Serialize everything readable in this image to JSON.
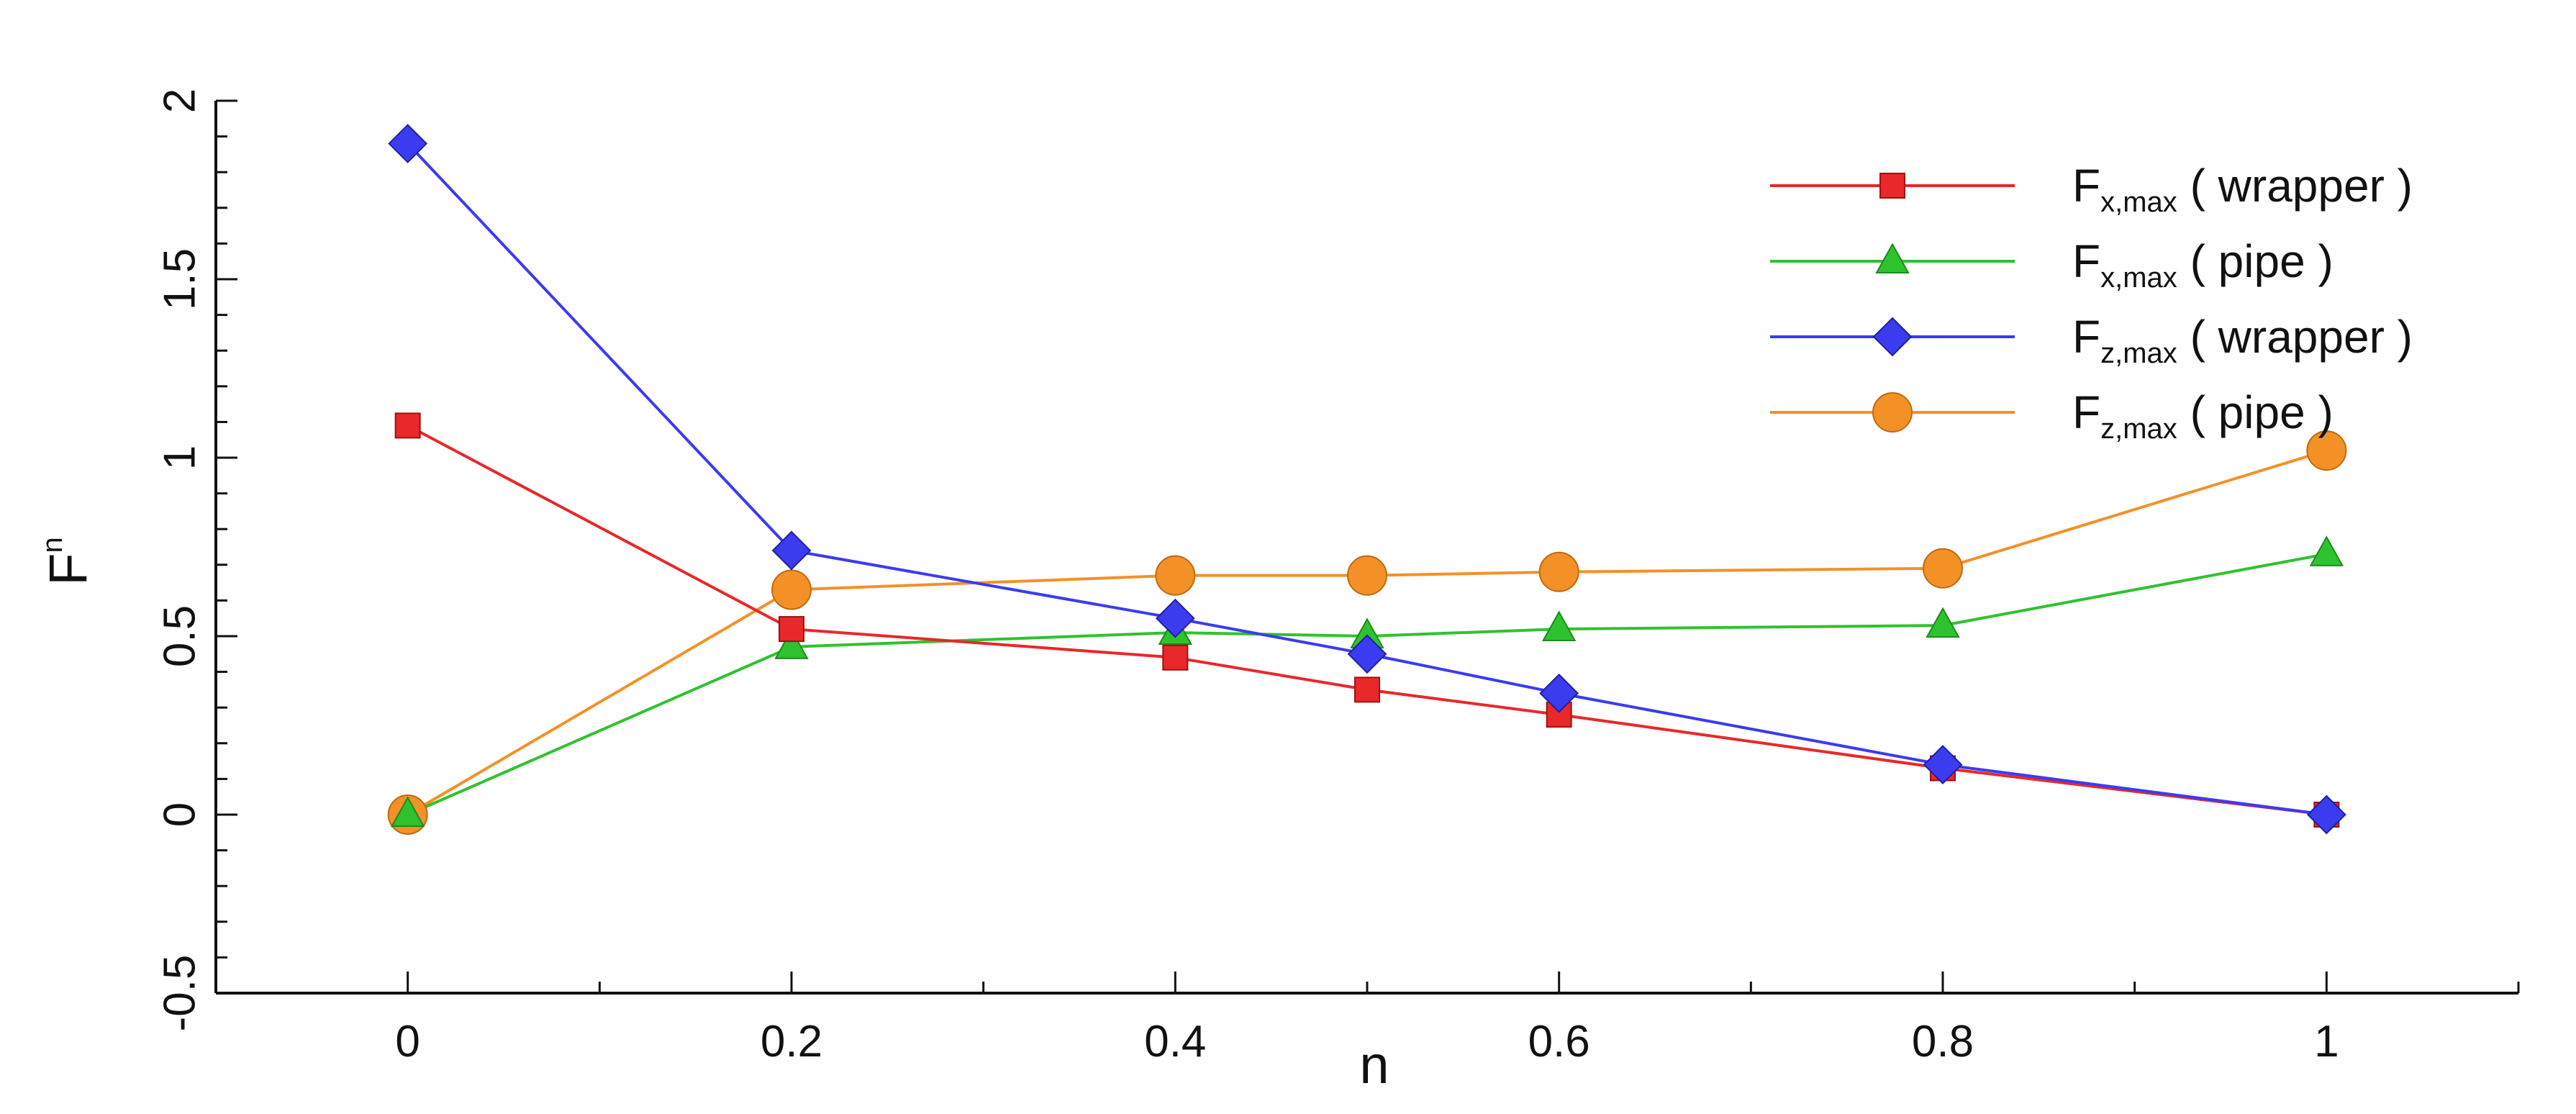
{
  "chart_data": {
    "type": "line",
    "xlabel": "n",
    "ylabel": {
      "base": "F",
      "sup": "n"
    },
    "xlim": [
      -0.1,
      1.1
    ],
    "ylim": [
      -0.5,
      2
    ],
    "x_ticks": [
      0,
      0.2,
      0.4,
      0.6,
      0.8,
      1
    ],
    "y_ticks": [
      -0.5,
      0,
      0.5,
      1,
      1.5,
      2
    ],
    "grid": false,
    "legend_position": "top-right",
    "series": [
      {
        "name": {
          "base": "F",
          "sub": "x,max",
          "suffix": " ( wrapper )"
        },
        "color": "#e8282a",
        "marker": "square",
        "x": [
          0,
          0.2,
          0.4,
          0.5,
          0.6,
          0.8,
          1
        ],
        "y": [
          1.09,
          0.52,
          0.44,
          0.35,
          0.28,
          0.13,
          0.0
        ]
      },
      {
        "name": {
          "base": "F",
          "sub": "x,max",
          "suffix": " ( pipe )"
        },
        "color": "#2fc22f",
        "marker": "triangle",
        "x": [
          0,
          0.2,
          0.4,
          0.5,
          0.6,
          0.8,
          1
        ],
        "y": [
          0.0,
          0.47,
          0.51,
          0.5,
          0.52,
          0.53,
          0.73
        ]
      },
      {
        "name": {
          "base": "F",
          "sub": "z,max",
          "suffix": " ( wrapper )"
        },
        "color": "#3b3bf0",
        "marker": "diamond",
        "x": [
          0,
          0.2,
          0.4,
          0.5,
          0.6,
          0.8,
          1
        ],
        "y": [
          1.88,
          0.74,
          0.55,
          0.45,
          0.34,
          0.14,
          0.0
        ]
      },
      {
        "name": {
          "base": "F",
          "sub": "z,max",
          "suffix": " ( pipe )"
        },
        "color": "#f39127",
        "marker": "circle",
        "x": [
          0,
          0.2,
          0.4,
          0.5,
          0.6,
          0.8,
          1
        ],
        "y": [
          0.0,
          0.63,
          0.67,
          0.67,
          0.68,
          0.69,
          1.02
        ]
      }
    ]
  }
}
